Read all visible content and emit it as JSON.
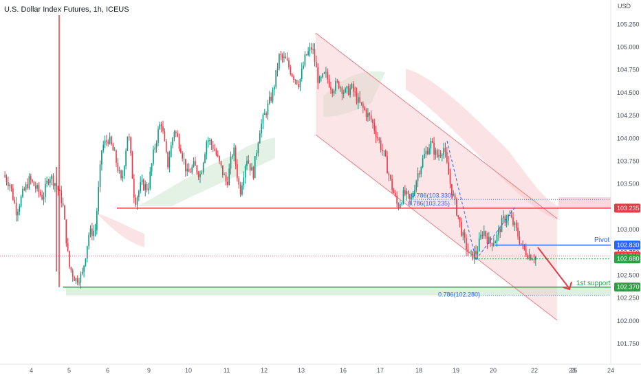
{
  "header": {
    "title": "U.S. Dollar Index Futures, 1h, ICEUS"
  },
  "chart_data": {
    "type": "candlestick",
    "currency": "USD",
    "ylim": [
      101.6,
      105.35
    ],
    "y_ticks": [
      "105.250",
      "105.000",
      "104.750",
      "104.500",
      "104.250",
      "104.000",
      "103.750",
      "103.500",
      "103.250",
      "103.000",
      "102.750",
      "102.500",
      "102.250",
      "102.000",
      "101.750"
    ],
    "x_ticks": [
      "4",
      "5",
      "6",
      "9",
      "10",
      "11",
      "12",
      "13",
      "16",
      "17",
      "18",
      "19",
      "20",
      "22",
      "23",
      "24",
      "25"
    ],
    "price_path": [
      103.6,
      103.5,
      103.2,
      103.4,
      103.55,
      103.45,
      103.35,
      103.6,
      103.5,
      103.3,
      102.6,
      102.45,
      102.5,
      102.95,
      103.0,
      103.9,
      104.0,
      103.8,
      103.5,
      104.1,
      103.3,
      103.5,
      103.45,
      103.9,
      104.2,
      103.7,
      104.1,
      103.9,
      103.6,
      103.7,
      103.6,
      104.0,
      103.9,
      103.7,
      103.5,
      103.9,
      103.4,
      103.8,
      103.6,
      104.1,
      104.3,
      104.5,
      104.9,
      104.85,
      104.7,
      104.6,
      104.9,
      105.0,
      104.6,
      104.7,
      104.55,
      104.6,
      104.5,
      104.55,
      104.4,
      104.3,
      104.2,
      104.0,
      103.8,
      103.5,
      103.25,
      103.4,
      103.3,
      103.6,
      103.8,
      103.95,
      103.8,
      103.9,
      103.5,
      103.2,
      102.9,
      102.7,
      102.75,
      103.0,
      102.85,
      102.9,
      103.1,
      103.15,
      103.0,
      102.8,
      102.72,
      102.7
    ],
    "levels": [
      {
        "name": "Pivot",
        "value": 102.83,
        "label": "102.830",
        "color": "#2962ff"
      },
      {
        "name": "",
        "value": 103.235,
        "label": "103.235",
        "color": "#e53b45"
      },
      {
        "name": "1st support",
        "value": 102.37,
        "label": "102.370",
        "color": "#2ea043"
      }
    ],
    "current_price": {
      "value": 102.71,
      "label": "102.710",
      "color": "#f23645"
    },
    "secondary_tag": {
      "value": 102.68,
      "label": "102.680",
      "color": "#2ea043"
    },
    "fib_labels": [
      {
        "text": "0.786(103.330)",
        "value": 103.33
      },
      {
        "text": "0.786(103.235)",
        "value": 103.235
      },
      {
        "text": "0.786(102.280)",
        "value": 102.28
      }
    ],
    "annotations": {
      "pivot": "Pivot",
      "support": "1st support"
    }
  }
}
